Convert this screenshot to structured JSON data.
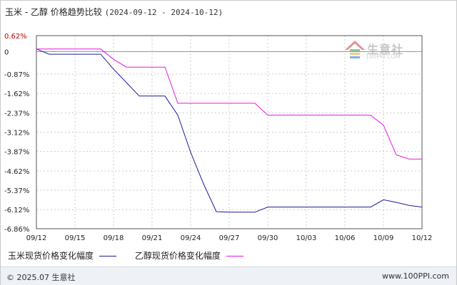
{
  "header": {
    "title": "玉米 - 乙醇 价格趋势比较",
    "date_range": "(2024-09-12 - 2024-10-12)"
  },
  "watermark": {
    "name": "生意社",
    "url": "100PPI.COM"
  },
  "footer": {
    "copyright": "© 2025.07 生意社",
    "site": "www.100PPI.com"
  },
  "colors": {
    "series1": "#1c1c9c",
    "series2": "#e616e6",
    "grid": "#cccccc",
    "axis": "#555555"
  },
  "chart_data": {
    "type": "line",
    "title": "玉米 - 乙醇 价格趋势比较",
    "xlabel": "",
    "ylabel": "",
    "x_ticks": [
      "09/12",
      "09/15",
      "09/18",
      "09/21",
      "09/24",
      "09/27",
      "09/30",
      "10/03",
      "10/06",
      "10/09",
      "10/12"
    ],
    "y_ticks": [
      "0.62%",
      "0",
      "-0.87%",
      "-1.62%",
      "-2.37%",
      "-3.12%",
      "-3.87%",
      "-4.62%",
      "-5.37%",
      "-6.12%",
      "-6.86%"
    ],
    "ylim": [
      -6.86,
      0.62
    ],
    "grid": true,
    "legend_position": "bottom",
    "x": [
      "09/12",
      "09/13",
      "09/14",
      "09/15",
      "09/16",
      "09/17",
      "09/18",
      "09/19",
      "09/20",
      "09/21",
      "09/22",
      "09/23",
      "09/24",
      "09/25",
      "09/26",
      "09/27",
      "09/28",
      "09/29",
      "09/30",
      "10/01",
      "10/02",
      "10/03",
      "10/04",
      "10/05",
      "10/06",
      "10/07",
      "10/08",
      "10/09",
      "10/10",
      "10/11",
      "10/12"
    ],
    "series": [
      {
        "name": "玉米现货价格变化幅度",
        "values": [
          0.1,
          -0.1,
          -0.1,
          -0.1,
          -0.1,
          -0.1,
          -0.68,
          -1.2,
          -1.72,
          -1.72,
          -1.72,
          -2.46,
          -3.9,
          -5.12,
          -6.2,
          -6.22,
          -6.22,
          -6.22,
          -6.02,
          -6.02,
          -6.02,
          -6.02,
          -6.02,
          -6.02,
          -6.02,
          -6.02,
          -6.02,
          -5.74,
          -5.84,
          -5.96,
          -6.02
        ]
      },
      {
        "name": "乙醇现货价格变化幅度",
        "values": [
          0.1,
          0.1,
          0.1,
          0.1,
          0.1,
          0.1,
          -0.3,
          -0.6,
          -0.6,
          -0.6,
          -0.6,
          -2.0,
          -2.0,
          -2.0,
          -2.0,
          -2.0,
          -2.0,
          -2.0,
          -2.46,
          -2.46,
          -2.46,
          -2.46,
          -2.46,
          -2.46,
          -2.46,
          -2.46,
          -2.46,
          -2.85,
          -4.0,
          -4.16,
          -4.16
        ]
      }
    ]
  }
}
